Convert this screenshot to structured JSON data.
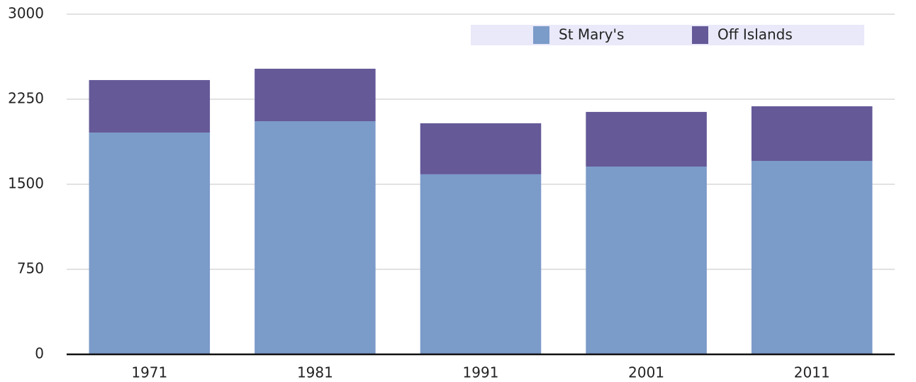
{
  "chart_data": {
    "type": "stacked_bar",
    "categories": [
      "1971",
      "1981",
      "1991",
      "2001",
      "2011"
    ],
    "series": [
      {
        "name": "St Mary's",
        "color": "#7b9bc9",
        "values": [
          1956,
          2056,
          1588,
          1656,
          1706
        ]
      },
      {
        "name": "Off Islands",
        "color": "#655998",
        "values": [
          463,
          463,
          450,
          482,
          482
        ]
      }
    ],
    "ylim": [
      0,
      3000
    ],
    "yticks": [
      0,
      750,
      1500,
      2250,
      3000
    ],
    "grid": true,
    "legend": "top-right"
  }
}
